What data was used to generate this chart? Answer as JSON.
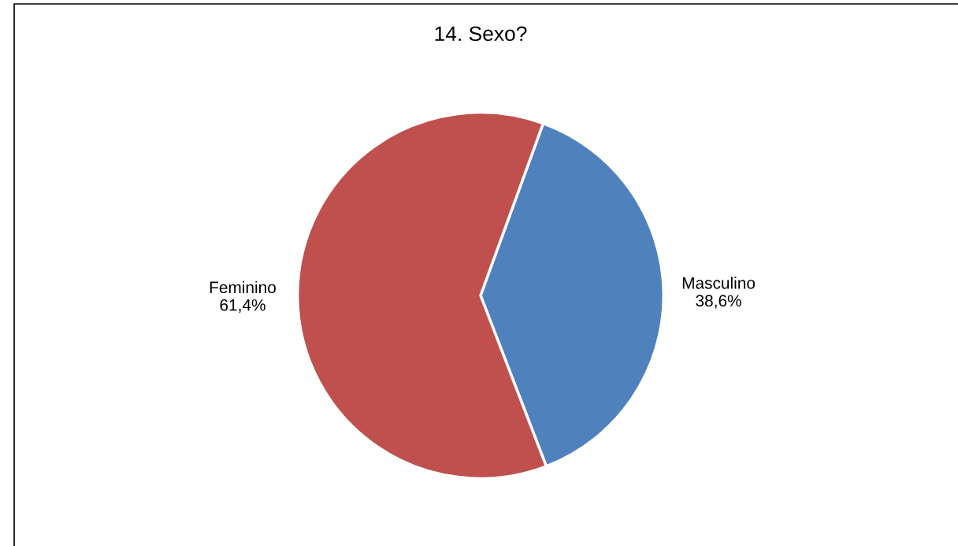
{
  "chart_data": {
    "type": "pie",
    "title": "14. Sexo?",
    "categories": [
      "Masculino",
      "Feminino"
    ],
    "values": [
      38.6,
      61.4
    ],
    "colors": [
      "#4f81bd",
      "#c0504d"
    ],
    "value_labels": [
      "38,6%",
      "61,4%"
    ],
    "legend": false
  }
}
